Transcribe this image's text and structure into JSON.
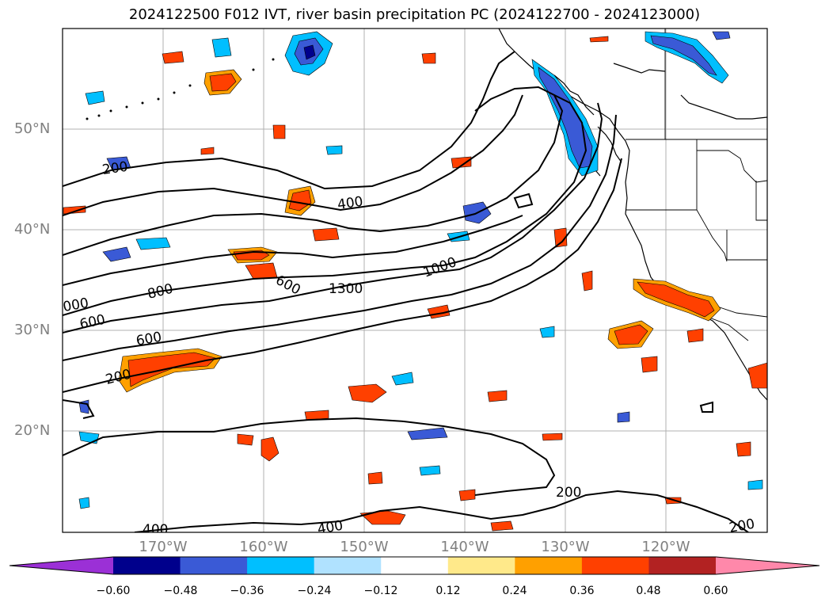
{
  "title": "2024122500 F012 IVT, river basin precipitation PC (2024122700 - 2024123000)",
  "lat_labels": [
    {
      "text": "50°N",
      "lat": 50
    },
    {
      "text": "40°N",
      "lat": 40
    },
    {
      "text": "30°N",
      "lat": 30
    },
    {
      "text": "20°N",
      "lat": 20
    }
  ],
  "lon_labels": [
    {
      "text": "170°W",
      "lon": -170
    },
    {
      "text": "160°W",
      "lon": -160
    },
    {
      "text": "150°W",
      "lon": -150
    },
    {
      "text": "140°W",
      "lon": -140
    },
    {
      "text": "130°W",
      "lon": -130
    },
    {
      "text": "120°W",
      "lon": -120
    }
  ],
  "contour_labels": [
    "200",
    "400",
    "600",
    "800",
    "1000",
    "1300"
  ],
  "colorbar": {
    "ticks": [
      "−0.60",
      "−0.48",
      "−0.36",
      "−0.24",
      "−0.12",
      "0.12",
      "0.24",
      "0.36",
      "0.48",
      "0.60"
    ],
    "colors": [
      "#9b30d6",
      "#00008c",
      "#3a5ad6",
      "#00bfff",
      "#b0e2ff",
      "#ffffff",
      "#ffe98a",
      "#ffa000",
      "#ff4000",
      "#b22222",
      "#ff88aa"
    ]
  }
}
